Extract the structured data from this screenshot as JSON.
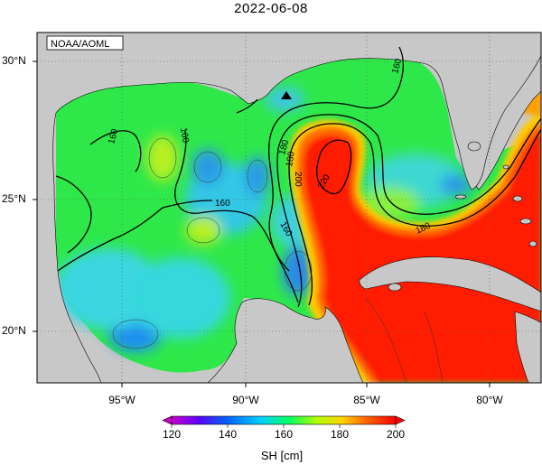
{
  "title": "2022-06-08",
  "credit": "NOAA/AOML",
  "lat_labels": [
    "30°N",
    "25°N",
    "20°N"
  ],
  "lon_labels": [
    "95°W",
    "90°W",
    "85°W",
    "80°W"
  ],
  "contour_labels": [
    "160",
    "160",
    "180",
    "160",
    "160",
    "180",
    "200",
    "220",
    "180",
    "160"
  ],
  "colorbar": {
    "ticks": [
      "120",
      "140",
      "160",
      "180",
      "200"
    ],
    "label": "SH [cm]",
    "range": [
      120,
      200
    ],
    "colors": [
      "#c800c8",
      "#5a00ff",
      "#0064ff",
      "#00d2ff",
      "#00ff64",
      "#b4ff00",
      "#ffd200",
      "#ff6400",
      "#ff0000"
    ]
  },
  "colors": {
    "land": "#c8c8c8",
    "warm": "#ff2a00",
    "green": "#33ee33",
    "cyan": "#22ddcc",
    "blue": "#2b9be8"
  },
  "marker": "triangle-marker-icon"
}
